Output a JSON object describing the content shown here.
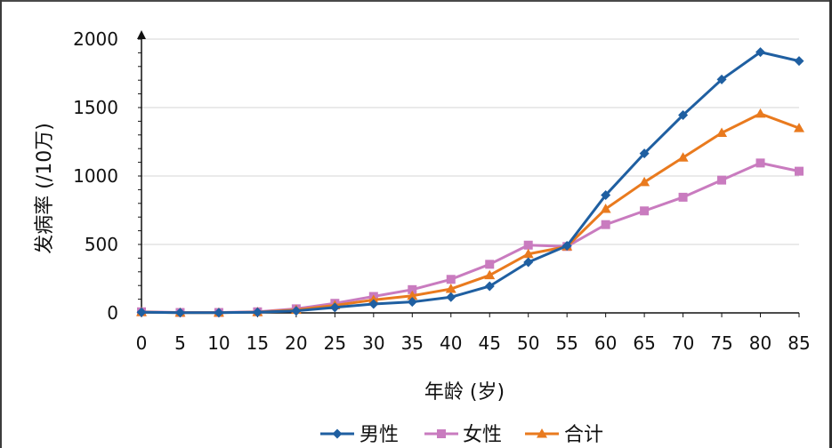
{
  "chart_data": {
    "type": "line",
    "xlabel": "年龄 (岁)",
    "ylabel": "发病率 (/10万)",
    "x": [
      0,
      5,
      10,
      15,
      20,
      25,
      30,
      35,
      40,
      45,
      50,
      55,
      60,
      65,
      70,
      75,
      80,
      85
    ],
    "ylim": [
      0,
      2000
    ],
    "yticks": [
      0,
      500,
      1000,
      1500,
      2000
    ],
    "grid": true,
    "legend_position": "bottom",
    "series": [
      {
        "name": "男性",
        "color": "#1F5FA1",
        "marker": "diamond",
        "values": [
          5,
          2,
          2,
          5,
          15,
          40,
          65,
          80,
          115,
          195,
          370,
          490,
          860,
          1165,
          1445,
          1705,
          1905,
          1840
        ]
      },
      {
        "name": "女性",
        "color": "#C97BBF",
        "marker": "square",
        "values": [
          8,
          3,
          3,
          8,
          30,
          70,
          120,
          170,
          245,
          355,
          495,
          485,
          645,
          745,
          845,
          970,
          1095,
          1035
        ]
      },
      {
        "name": "合计",
        "color": "#E97A1E",
        "marker": "triangle",
        "values": [
          6,
          2,
          2,
          6,
          22,
          55,
          95,
          125,
          175,
          275,
          430,
          485,
          760,
          955,
          1135,
          1315,
          1455,
          1350
        ]
      }
    ]
  }
}
